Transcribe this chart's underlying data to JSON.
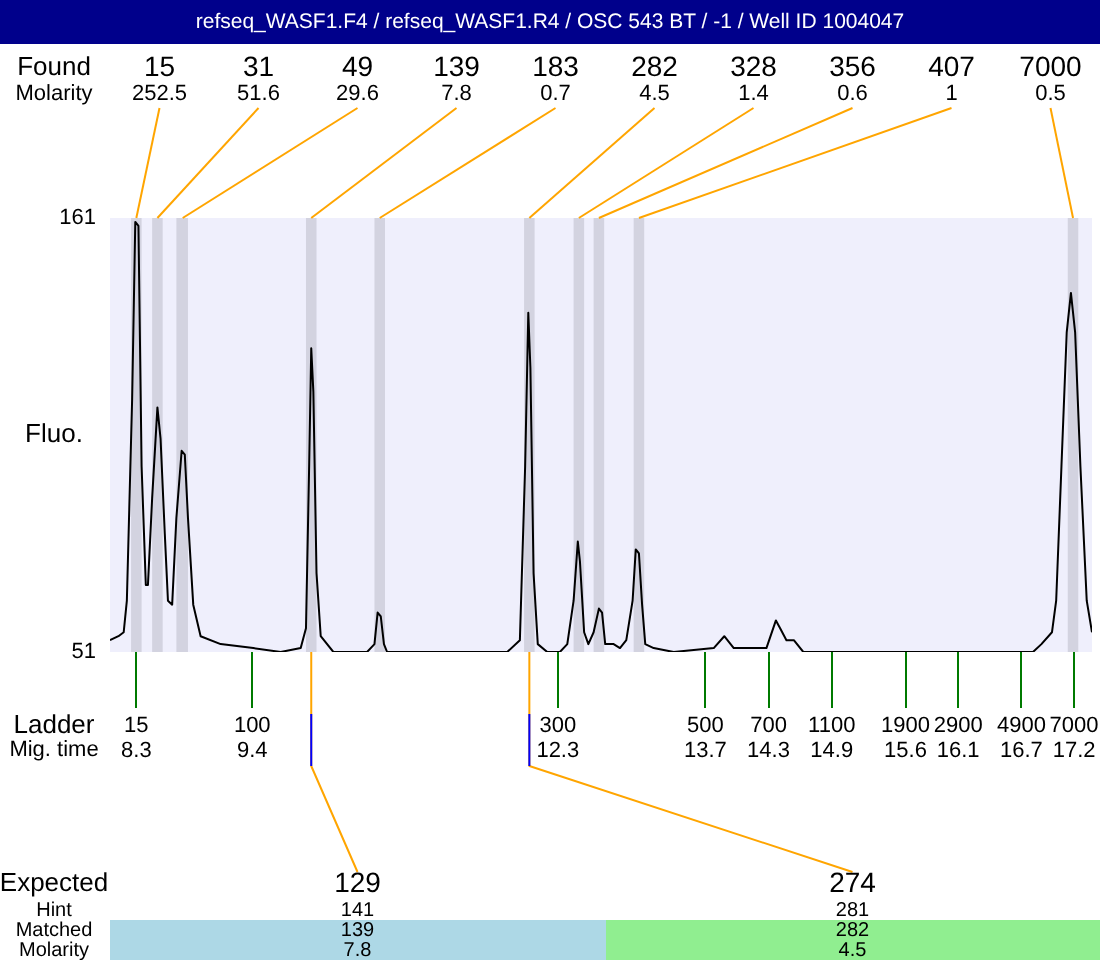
{
  "chart_data": {
    "type": "line",
    "title": "refseq_WASF1.F4 / refseq_WASF1.R4 / OSC 543 BT / -1 / Well ID 1004047",
    "xlabel": "Mig. time",
    "ylabel": "Fluo.",
    "x": [
      8.05,
      8.13,
      8.18,
      8.21,
      8.26,
      8.29,
      8.32,
      8.35,
      8.39,
      8.41,
      8.45,
      8.5,
      8.53,
      8.57,
      8.6,
      8.64,
      8.68,
      8.73,
      8.76,
      8.79,
      8.84,
      8.91,
      9.1,
      9.41,
      9.67,
      9.86,
      9.91,
      9.94,
      9.96,
      9.98,
      10.01,
      10.05,
      10.17,
      10.49,
      10.56,
      10.59,
      10.62,
      10.65,
      10.68,
      11.82,
      11.94,
      11.99,
      12.02,
      12.04,
      12.07,
      12.11,
      12.2,
      12.32,
      12.39,
      12.45,
      12.49,
      12.51,
      12.55,
      12.59,
      12.64,
      12.69,
      12.72,
      12.75,
      12.83,
      12.89,
      12.95,
      13.01,
      13.04,
      13.07,
      13.1,
      13.13,
      13.21,
      13.4,
      13.78,
      13.88,
      13.97,
      14.28,
      14.37,
      14.41,
      14.47,
      14.54,
      14.63,
      15.3,
      16.06,
      16.81,
      16.89,
      16.99,
      17.03,
      17.08,
      17.13,
      17.17,
      17.21,
      17.26,
      17.32,
      17.37
    ],
    "series": [
      {
        "color": "#000000",
        "values": [
          54,
          55,
          56,
          64,
          115,
          160,
          159,
          98,
          68,
          68,
          90,
          113,
          105,
          81,
          64,
          63,
          85,
          102,
          101,
          85,
          63,
          55,
          53,
          52,
          51,
          52,
          57,
          98,
          128,
          117,
          71,
          55,
          51,
          51,
          53,
          61,
          60,
          53,
          51,
          51,
          54,
          98,
          137,
          123,
          71,
          53,
          51,
          51,
          53,
          64,
          79,
          74,
          56,
          53,
          56,
          62,
          61,
          53,
          53,
          52,
          54,
          64,
          77,
          76,
          63,
          53,
          52,
          51,
          52,
          55,
          52,
          52,
          59,
          57,
          54,
          54,
          51,
          51,
          51,
          51,
          53,
          56,
          64,
          98,
          132,
          142,
          132,
          98,
          64,
          56
        ]
      }
    ],
    "xlim": [
      8.05,
      17.37
    ],
    "ylim": [
      51,
      161
    ],
    "xticks": [
      8.3,
      9.4,
      12.3,
      13.7,
      14.3,
      14.9,
      15.6,
      16.1,
      16.7,
      17.2
    ],
    "yticks": [
      51,
      161
    ],
    "bands": [
      {
        "axis": "x",
        "from": 8.25,
        "to": 8.35,
        "color": "#d3d3e0"
      },
      {
        "axis": "x",
        "from": 8.45,
        "to": 8.55,
        "color": "#d3d3e0"
      },
      {
        "axis": "x",
        "from": 8.68,
        "to": 8.79,
        "color": "#d3d3e0"
      },
      {
        "axis": "x",
        "from": 9.91,
        "to": 10.01,
        "color": "#d3d3e0"
      },
      {
        "axis": "x",
        "from": 10.56,
        "to": 10.66,
        "color": "#d3d3e0"
      },
      {
        "axis": "x",
        "from": 11.98,
        "to": 12.08,
        "color": "#d3d3e0"
      },
      {
        "axis": "x",
        "from": 12.45,
        "to": 12.55,
        "color": "#d3d3e0"
      },
      {
        "axis": "x",
        "from": 12.64,
        "to": 12.74,
        "color": "#d3d3e0"
      },
      {
        "axis": "x",
        "from": 13.02,
        "to": 13.12,
        "color": "#d3d3e0"
      },
      {
        "axis": "x",
        "from": 17.14,
        "to": 17.24,
        "color": "#d3d3e0"
      }
    ],
    "annotations": [
      "Found",
      {
        "text": "15",
        "x": 8.3,
        "y": 161
      },
      {
        "text": "31",
        "x": 8.5,
        "y": 161
      },
      {
        "text": "49",
        "x": 8.74,
        "y": 161
      },
      {
        "text": "139",
        "x": 9.96,
        "y": 161
      },
      {
        "text": "183",
        "x": 10.61,
        "y": 161
      },
      {
        "text": "282",
        "x": 12.03,
        "y": 161
      },
      {
        "text": "328",
        "x": 12.5,
        "y": 161
      },
      {
        "text": "356",
        "x": 12.69,
        "y": 161
      },
      {
        "text": "407",
        "x": 13.07,
        "y": 161
      },
      {
        "text": "7000",
        "x": 17.19,
        "y": 161
      },
      "Molarity",
      "252.5",
      "51.6",
      "29.6",
      "7.8",
      "0.7",
      "4.5",
      "1.4",
      "0.6",
      "1",
      "0.5",
      "Ladder",
      "15",
      "100",
      "300",
      "500",
      "700",
      "1100",
      "1900",
      "2900",
      "4900",
      "7000",
      "Expected",
      {
        "text": "129",
        "x": 9.96,
        "y": 51
      },
      {
        "text": "274",
        "x": 12.03,
        "y": 51
      },
      "Hint",
      "141",
      "281",
      "Matched",
      "139",
      "282",
      "Molarity",
      "7.8",
      "4.5"
    ]
  }
}
